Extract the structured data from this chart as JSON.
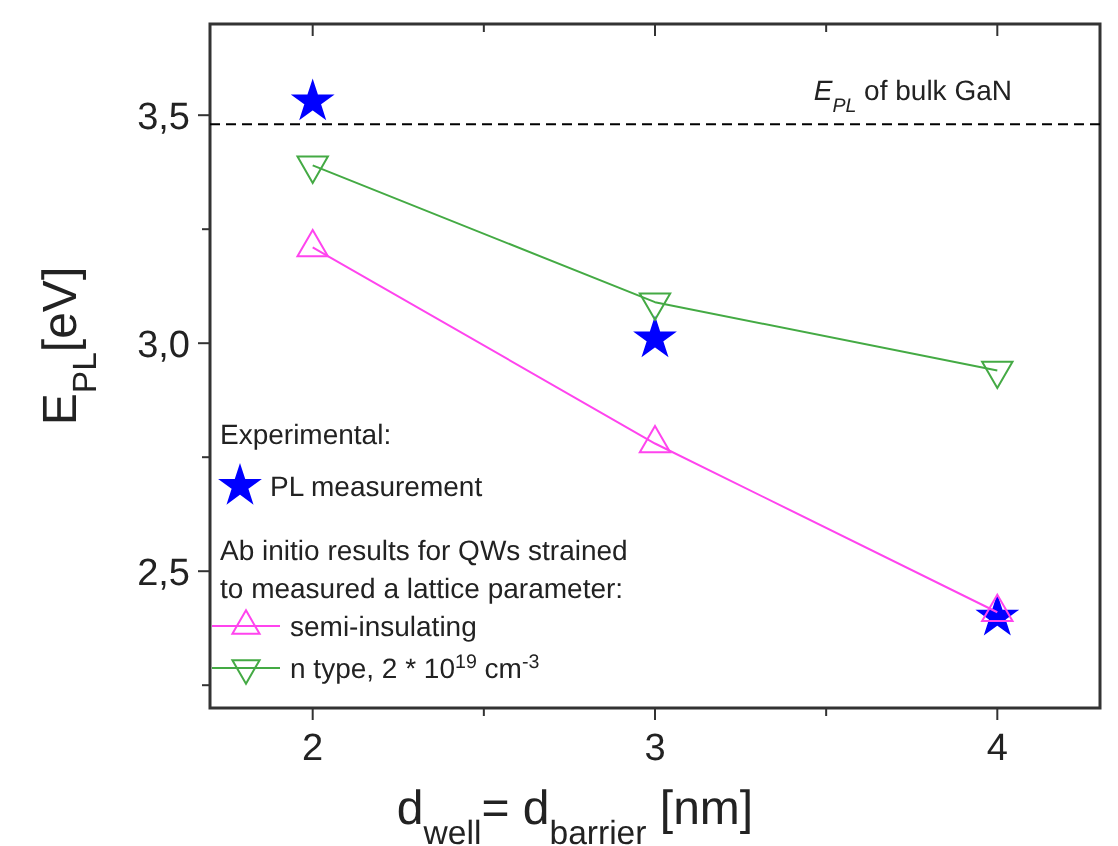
{
  "chart_data": {
    "type": "line",
    "xlabel": "d$_{well}$= d$_{barrier}$ [nm]",
    "ylabel": "E$_{PL}$[eV]",
    "x": [
      2,
      3,
      4
    ],
    "xlim": [
      1.7,
      4.3
    ],
    "xticks": [
      2,
      {
        "value": 2.5,
        "label": null
      },
      3,
      {
        "value": 3.5,
        "label": null
      },
      4
    ],
    "ylim": [
      2.2,
      3.7
    ],
    "yticks": [
      {
        "value": 2.25,
        "label": null
      },
      {
        "value": 2.5,
        "label": "2,5"
      },
      {
        "value": 2.75,
        "label": null
      },
      {
        "value": 3.0,
        "label": "3,0"
      },
      {
        "value": 3.25,
        "label": null
      },
      {
        "value": 3.5,
        "label": "3,5"
      }
    ],
    "series": [
      {
        "name": "PL measurement",
        "type": "scatter",
        "marker": "star",
        "color": "#0000ff",
        "values": [
          3.53,
          3.01,
          2.4
        ]
      },
      {
        "name": "semi-insulating",
        "type": "line",
        "marker": "triangle",
        "color": "#ff44ee",
        "values": [
          3.21,
          2.78,
          2.41
        ]
      },
      {
        "name": "n type, 2 * 10$^{19}$ cm$^{-3}$",
        "type": "line",
        "marker": "triangle-down",
        "color": "#44aa44",
        "values": [
          3.39,
          3.09,
          2.94
        ]
      }
    ],
    "ref_lines": [
      {
        "axis": "y",
        "value": 3.48,
        "label": "E$_{PL}$ of bulk GaN",
        "line_style": "dashed",
        "color": "#000000"
      }
    ],
    "legend": "bottom left",
    "legend_title": "Experimental:",
    "annotations": [
      "Ab initio results for QWs strained to measured a lattice parameter:"
    ],
    "grid": false
  }
}
